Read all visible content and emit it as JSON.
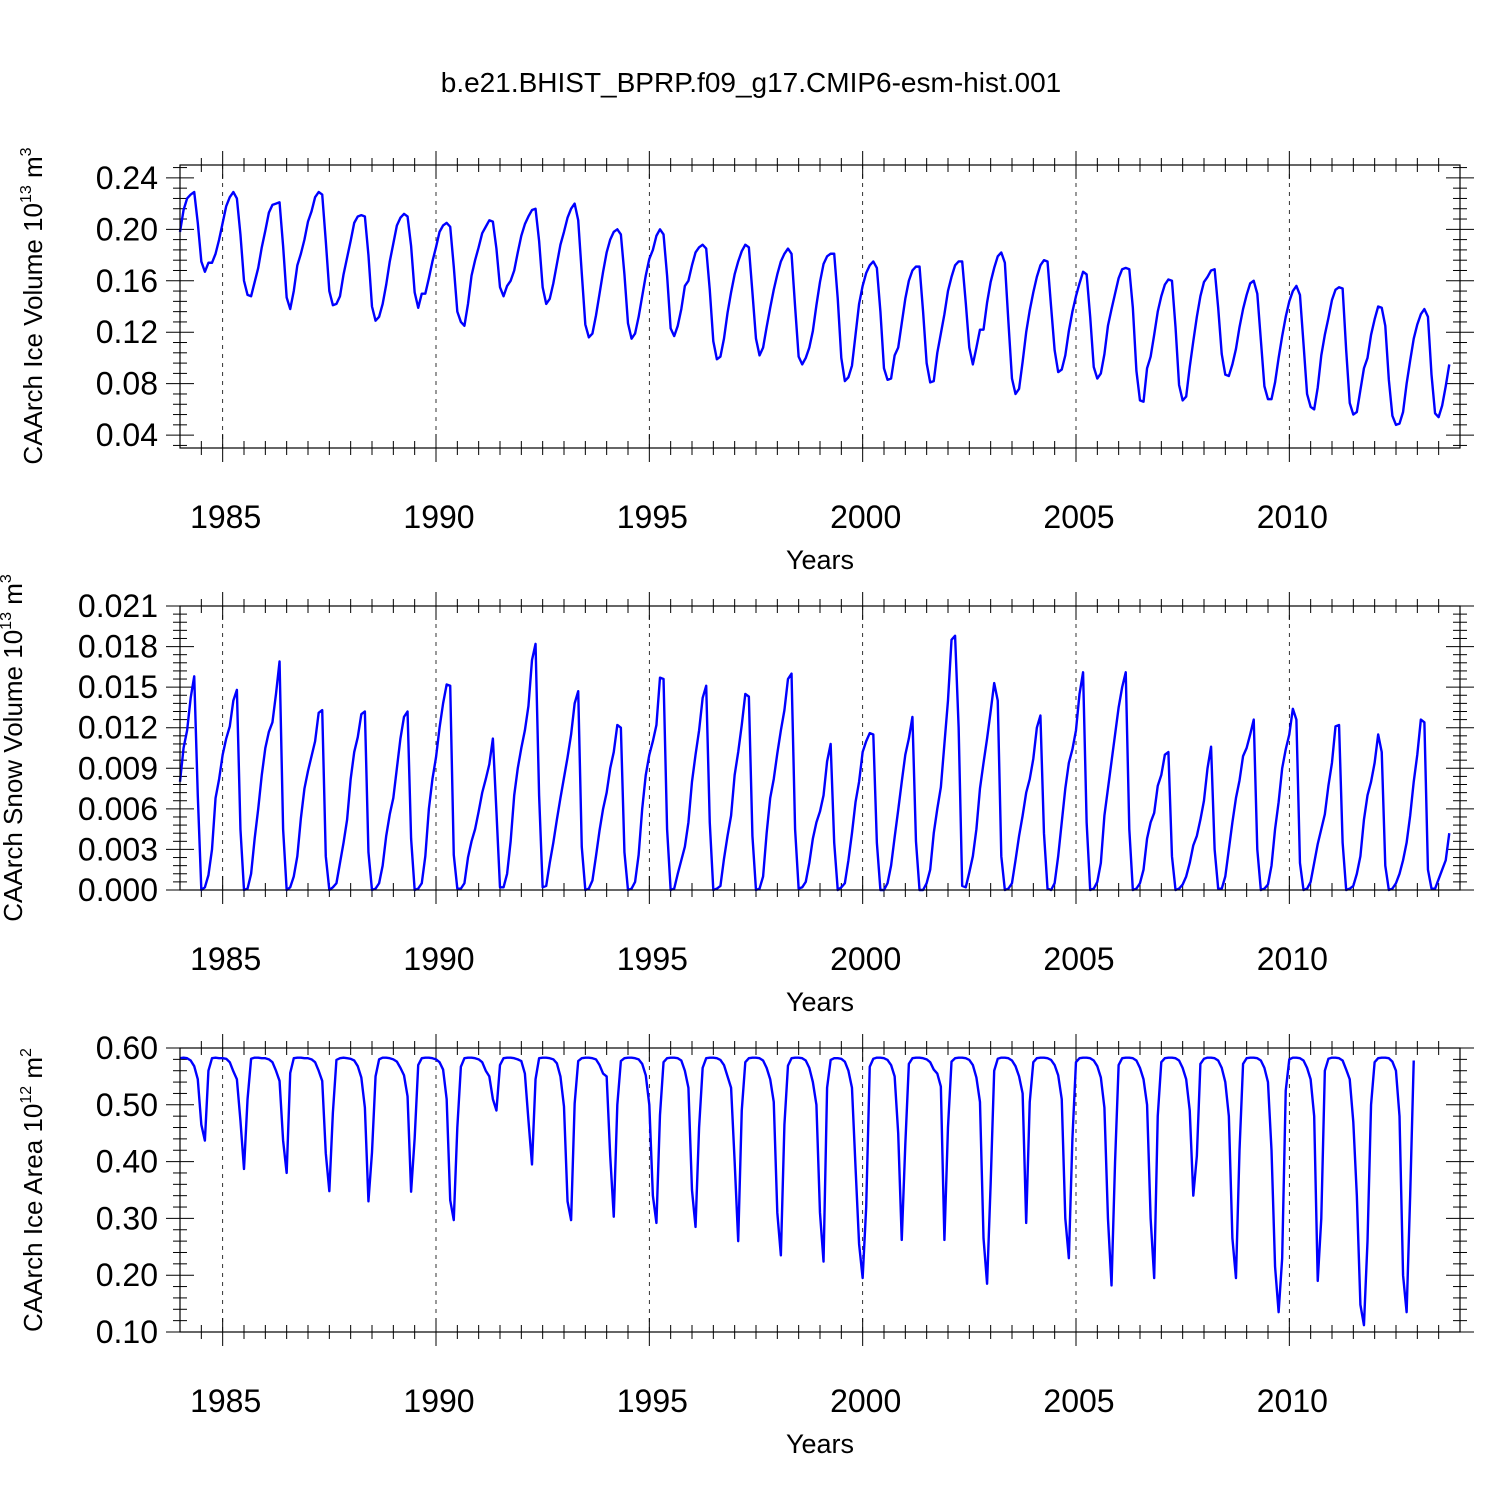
{
  "figure_title": "b.e21.BHIST_BPRP.f09_g17.CMIP6-esm-hist.001",
  "colors": {
    "series": "#0000ff",
    "axes": "#000000",
    "background": "#ffffff"
  },
  "chart_data": [
    {
      "type": "line",
      "title": "b.e21.BHIST_BPRP.f09_g17.CMIP6-esm-hist.001",
      "ylabel_main": "CAArch Ice Volume 10",
      "ylabel_exp": "13",
      "ylabel_unit": "m",
      "ylabel_unit_exp": "3",
      "xlabel": "Years",
      "xlim": [
        1984.0,
        2014.0
      ],
      "ylim": [
        0.03,
        0.25
      ],
      "yticks": [
        0.04,
        0.08,
        0.12,
        0.16,
        0.2,
        0.24
      ],
      "ytick_labels": [
        "0.04",
        "0.08",
        "0.12",
        "0.16",
        "0.20",
        "0.24"
      ],
      "xticks": [
        1985,
        1990,
        1995,
        2000,
        2005,
        2010
      ],
      "xtick_labels": [
        "1985",
        "1990",
        "1995",
        "2000",
        "2005",
        "2010"
      ],
      "grid": "dashed vertical lines at major x ticks",
      "start_year": 1984.0,
      "step": 0.08333,
      "values": [
        0.198,
        0.215,
        0.224,
        0.227,
        0.229,
        0.205,
        0.175,
        0.167,
        0.174,
        0.174,
        0.181,
        0.192,
        0.205,
        0.218,
        0.225,
        0.229,
        0.224,
        0.196,
        0.16,
        0.149,
        0.148,
        0.159,
        0.17,
        0.186,
        0.199,
        0.213,
        0.219,
        0.22,
        0.221,
        0.187,
        0.147,
        0.138,
        0.152,
        0.172,
        0.181,
        0.192,
        0.206,
        0.214,
        0.225,
        0.229,
        0.227,
        0.191,
        0.152,
        0.141,
        0.142,
        0.148,
        0.165,
        0.178,
        0.191,
        0.205,
        0.21,
        0.211,
        0.21,
        0.18,
        0.14,
        0.129,
        0.132,
        0.142,
        0.157,
        0.175,
        0.189,
        0.203,
        0.209,
        0.212,
        0.21,
        0.187,
        0.151,
        0.139,
        0.15,
        0.15,
        0.162,
        0.175,
        0.186,
        0.198,
        0.203,
        0.205,
        0.202,
        0.171,
        0.136,
        0.128,
        0.125,
        0.142,
        0.164,
        0.176,
        0.186,
        0.197,
        0.202,
        0.207,
        0.206,
        0.185,
        0.155,
        0.148,
        0.156,
        0.16,
        0.168,
        0.182,
        0.195,
        0.204,
        0.21,
        0.215,
        0.216,
        0.191,
        0.155,
        0.142,
        0.146,
        0.158,
        0.173,
        0.188,
        0.198,
        0.209,
        0.216,
        0.22,
        0.207,
        0.166,
        0.126,
        0.116,
        0.119,
        0.133,
        0.15,
        0.167,
        0.182,
        0.192,
        0.198,
        0.2,
        0.196,
        0.165,
        0.127,
        0.115,
        0.119,
        0.132,
        0.148,
        0.164,
        0.177,
        0.184,
        0.195,
        0.2,
        0.196,
        0.164,
        0.123,
        0.117,
        0.125,
        0.138,
        0.156,
        0.16,
        0.172,
        0.182,
        0.186,
        0.188,
        0.185,
        0.153,
        0.113,
        0.099,
        0.101,
        0.115,
        0.135,
        0.151,
        0.165,
        0.175,
        0.183,
        0.188,
        0.186,
        0.151,
        0.115,
        0.102,
        0.108,
        0.124,
        0.139,
        0.153,
        0.165,
        0.175,
        0.181,
        0.185,
        0.181,
        0.14,
        0.101,
        0.095,
        0.1,
        0.108,
        0.121,
        0.141,
        0.159,
        0.173,
        0.179,
        0.181,
        0.181,
        0.146,
        0.1,
        0.082,
        0.085,
        0.094,
        0.118,
        0.142,
        0.156,
        0.166,
        0.172,
        0.175,
        0.17,
        0.136,
        0.092,
        0.083,
        0.084,
        0.102,
        0.108,
        0.127,
        0.146,
        0.16,
        0.168,
        0.171,
        0.171,
        0.136,
        0.096,
        0.081,
        0.082,
        0.104,
        0.119,
        0.134,
        0.152,
        0.163,
        0.172,
        0.175,
        0.175,
        0.143,
        0.108,
        0.095,
        0.108,
        0.122,
        0.122,
        0.143,
        0.159,
        0.17,
        0.179,
        0.182,
        0.174,
        0.128,
        0.084,
        0.072,
        0.076,
        0.097,
        0.12,
        0.137,
        0.151,
        0.163,
        0.172,
        0.176,
        0.175,
        0.14,
        0.106,
        0.089,
        0.091,
        0.102,
        0.121,
        0.136,
        0.148,
        0.158,
        0.167,
        0.165,
        0.132,
        0.093,
        0.084,
        0.088,
        0.103,
        0.125,
        0.138,
        0.15,
        0.162,
        0.169,
        0.17,
        0.169,
        0.139,
        0.09,
        0.067,
        0.066,
        0.092,
        0.101,
        0.118,
        0.136,
        0.148,
        0.157,
        0.161,
        0.16,
        0.124,
        0.079,
        0.067,
        0.07,
        0.093,
        0.113,
        0.132,
        0.148,
        0.159,
        0.163,
        0.168,
        0.169,
        0.139,
        0.103,
        0.087,
        0.086,
        0.095,
        0.107,
        0.124,
        0.138,
        0.149,
        0.158,
        0.16,
        0.15,
        0.114,
        0.078,
        0.068,
        0.068,
        0.081,
        0.1,
        0.117,
        0.132,
        0.144,
        0.152,
        0.156,
        0.149,
        0.111,
        0.072,
        0.062,
        0.06,
        0.077,
        0.102,
        0.118,
        0.131,
        0.145,
        0.153,
        0.155,
        0.154,
        0.106,
        0.065,
        0.056,
        0.058,
        0.075,
        0.092,
        0.1,
        0.118,
        0.13,
        0.14,
        0.139,
        0.125,
        0.083,
        0.055,
        0.048,
        0.049,
        0.058,
        0.08,
        0.098,
        0.115,
        0.126,
        0.134,
        0.138,
        0.132,
        0.087,
        0.057,
        0.054,
        0.063,
        0.078,
        0.095
      ]
    },
    {
      "type": "line",
      "ylabel_main": "CAArch Snow Volume 10",
      "ylabel_exp": "13",
      "ylabel_unit": "m",
      "ylabel_unit_exp": "3",
      "xlabel": "Years",
      "xlim": [
        1984.0,
        2014.0
      ],
      "ylim": [
        0.0,
        0.021
      ],
      "yticks": [
        0.0,
        0.003,
        0.006,
        0.009,
        0.012,
        0.015,
        0.018,
        0.021
      ],
      "ytick_labels": [
        "0.000",
        "0.003",
        "0.006",
        "0.009",
        "0.012",
        "0.015",
        "0.018",
        "0.021"
      ],
      "xticks": [
        1985,
        1990,
        1995,
        2000,
        2005,
        2010
      ],
      "xtick_labels": [
        "1985",
        "1990",
        "1995",
        "2000",
        "2005",
        "2010"
      ],
      "grid": "dashed vertical lines at major x ticks",
      "start_year": 1984.0,
      "step": 0.08333,
      "values": [
        0.008,
        0.0105,
        0.0118,
        0.0142,
        0.0158,
        0.007,
        0.0,
        0.0002,
        0.0011,
        0.003,
        0.0068,
        0.0082,
        0.01,
        0.0112,
        0.0121,
        0.014,
        0.0148,
        0.0045,
        0.0,
        0.0001,
        0.0012,
        0.0038,
        0.006,
        0.0085,
        0.0105,
        0.0117,
        0.0124,
        0.0145,
        0.0169,
        0.0045,
        0.0,
        0.0002,
        0.001,
        0.0025,
        0.0053,
        0.0075,
        0.0088,
        0.0099,
        0.011,
        0.0131,
        0.0133,
        0.0025,
        0.0,
        0.0002,
        0.0005,
        0.002,
        0.0035,
        0.0052,
        0.0082,
        0.0102,
        0.0113,
        0.013,
        0.0132,
        0.0028,
        0.0,
        0.0001,
        0.0005,
        0.0018,
        0.004,
        0.0056,
        0.0068,
        0.009,
        0.0112,
        0.0128,
        0.0132,
        0.0038,
        0.0,
        0.0001,
        0.0005,
        0.0025,
        0.006,
        0.0082,
        0.0098,
        0.012,
        0.0138,
        0.0152,
        0.0151,
        0.0026,
        0.0001,
        0.0001,
        0.0005,
        0.0024,
        0.0036,
        0.0045,
        0.0058,
        0.0072,
        0.0082,
        0.0093,
        0.0112,
        0.0058,
        0.0002,
        0.0002,
        0.0012,
        0.0036,
        0.007,
        0.009,
        0.0105,
        0.0118,
        0.0136,
        0.017,
        0.0182,
        0.007,
        0.0002,
        0.0003,
        0.002,
        0.0035,
        0.0052,
        0.0068,
        0.0083,
        0.0098,
        0.0115,
        0.0138,
        0.0147,
        0.0032,
        0.0,
        0.0001,
        0.0007,
        0.0025,
        0.0044,
        0.006,
        0.0072,
        0.009,
        0.0102,
        0.0122,
        0.012,
        0.0028,
        0.0,
        0.0001,
        0.0006,
        0.0026,
        0.006,
        0.0085,
        0.01,
        0.011,
        0.0122,
        0.0157,
        0.0156,
        0.0045,
        0.0,
        0.0001,
        0.0012,
        0.0022,
        0.0032,
        0.005,
        0.008,
        0.01,
        0.0118,
        0.0142,
        0.0151,
        0.005,
        0.0,
        0.0001,
        0.0003,
        0.0023,
        0.004,
        0.0055,
        0.0085,
        0.0102,
        0.0122,
        0.0145,
        0.0143,
        0.004,
        0.0,
        0.0001,
        0.001,
        0.0042,
        0.0068,
        0.0082,
        0.0101,
        0.0118,
        0.0133,
        0.0156,
        0.016,
        0.0045,
        0.0001,
        0.0002,
        0.0006,
        0.002,
        0.0038,
        0.005,
        0.0058,
        0.007,
        0.0095,
        0.0108,
        0.0035,
        0.0,
        0.0002,
        0.0005,
        0.0022,
        0.0042,
        0.0065,
        0.008,
        0.0102,
        0.011,
        0.0116,
        0.0115,
        0.0035,
        0.0,
        0.0,
        0.0005,
        0.0018,
        0.0039,
        0.0059,
        0.008,
        0.01,
        0.0112,
        0.0128,
        0.0036,
        0.0,
        0.0,
        0.0005,
        0.0015,
        0.0042,
        0.006,
        0.0076,
        0.0108,
        0.014,
        0.0185,
        0.0188,
        0.012,
        0.0003,
        0.0002,
        0.0013,
        0.0025,
        0.0045,
        0.0075,
        0.0094,
        0.0112,
        0.0132,
        0.0153,
        0.014,
        0.0025,
        0.0,
        0.0001,
        0.0005,
        0.0022,
        0.004,
        0.0055,
        0.0072,
        0.0082,
        0.0097,
        0.012,
        0.0129,
        0.0042,
        0.0001,
        0.0,
        0.0005,
        0.0025,
        0.005,
        0.0075,
        0.0094,
        0.0104,
        0.0118,
        0.0145,
        0.0161,
        0.005,
        0.0,
        0.0001,
        0.0006,
        0.002,
        0.0055,
        0.0075,
        0.0095,
        0.0115,
        0.0135,
        0.015,
        0.0161,
        0.0045,
        0.0,
        0.0001,
        0.0005,
        0.0015,
        0.0038,
        0.005,
        0.0057,
        0.0077,
        0.0085,
        0.01,
        0.0102,
        0.0025,
        0.0,
        0.0001,
        0.0004,
        0.001,
        0.002,
        0.0033,
        0.004,
        0.0052,
        0.0066,
        0.009,
        0.0106,
        0.003,
        0.0001,
        0.0001,
        0.001,
        0.003,
        0.005,
        0.0068,
        0.0081,
        0.0099,
        0.0105,
        0.0115,
        0.0126,
        0.003,
        0.0,
        0.0001,
        0.0004,
        0.0018,
        0.0045,
        0.0065,
        0.009,
        0.0104,
        0.0115,
        0.0134,
        0.0126,
        0.002,
        0.0,
        0.0001,
        0.0006,
        0.002,
        0.0034,
        0.0045,
        0.0056,
        0.0077,
        0.0094,
        0.0121,
        0.0122,
        0.0035,
        0.0,
        0.0001,
        0.0003,
        0.0012,
        0.0025,
        0.0052,
        0.007,
        0.008,
        0.0094,
        0.0115,
        0.0102,
        0.0018,
        0.0,
        0.0001,
        0.0005,
        0.0012,
        0.0022,
        0.0035,
        0.0055,
        0.008,
        0.01,
        0.0126,
        0.0124,
        0.0015,
        0.0001,
        0.0001,
        0.0008,
        0.0015,
        0.0022,
        0.0042
      ]
    },
    {
      "type": "line",
      "ylabel_main": "CAArch Ice Area 10",
      "ylabel_exp": "12",
      "ylabel_unit": "m",
      "ylabel_unit_exp": "2",
      "xlabel": "Years",
      "xlim": [
        1984.0,
        2014.0
      ],
      "ylim": [
        0.1,
        0.6
      ],
      "yticks": [
        0.1,
        0.2,
        0.3,
        0.4,
        0.5,
        0.6
      ],
      "ytick_labels": [
        "0.10",
        "0.20",
        "0.30",
        "0.40",
        "0.50",
        "0.60"
      ],
      "xticks": [
        1985,
        1990,
        1995,
        2000,
        2005,
        2010
      ],
      "xtick_labels": [
        "1985",
        "1990",
        "1995",
        "2000",
        "2005",
        "2010"
      ],
      "grid": "dashed vertical lines at major x ticks",
      "start_year": 1984.0,
      "step": 0.08333,
      "values": [
        0.582,
        0.583,
        0.582,
        0.578,
        0.568,
        0.545,
        0.465,
        0.437,
        0.56,
        0.582,
        0.583,
        0.582,
        0.582,
        0.581,
        0.575,
        0.559,
        0.545,
        0.472,
        0.387,
        0.51,
        0.581,
        0.583,
        0.583,
        0.582,
        0.582,
        0.58,
        0.575,
        0.56,
        0.542,
        0.437,
        0.38,
        0.556,
        0.582,
        0.583,
        0.583,
        0.582,
        0.582,
        0.58,
        0.575,
        0.56,
        0.542,
        0.415,
        0.348,
        0.486,
        0.579,
        0.582,
        0.583,
        0.582,
        0.581,
        0.578,
        0.568,
        0.548,
        0.495,
        0.33,
        0.416,
        0.55,
        0.58,
        0.583,
        0.583,
        0.582,
        0.58,
        0.576,
        0.565,
        0.552,
        0.515,
        0.347,
        0.441,
        0.57,
        0.582,
        0.583,
        0.583,
        0.582,
        0.58,
        0.575,
        0.562,
        0.51,
        0.332,
        0.297,
        0.46,
        0.567,
        0.582,
        0.583,
        0.583,
        0.582,
        0.58,
        0.575,
        0.56,
        0.55,
        0.51,
        0.49,
        0.57,
        0.582,
        0.583,
        0.583,
        0.582,
        0.58,
        0.577,
        0.555,
        0.473,
        0.395,
        0.545,
        0.582,
        0.583,
        0.583,
        0.582,
        0.58,
        0.573,
        0.55,
        0.497,
        0.33,
        0.297,
        0.502,
        0.577,
        0.582,
        0.583,
        0.583,
        0.582,
        0.58,
        0.57,
        0.555,
        0.55,
        0.41,
        0.303,
        0.5,
        0.577,
        0.582,
        0.583,
        0.583,
        0.582,
        0.58,
        0.572,
        0.552,
        0.5,
        0.34,
        0.292,
        0.482,
        0.575,
        0.582,
        0.583,
        0.583,
        0.582,
        0.578,
        0.56,
        0.53,
        0.35,
        0.285,
        0.46,
        0.565,
        0.582,
        0.583,
        0.583,
        0.582,
        0.579,
        0.57,
        0.55,
        0.53,
        0.4,
        0.26,
        0.49,
        0.575,
        0.582,
        0.583,
        0.583,
        0.582,
        0.578,
        0.565,
        0.545,
        0.505,
        0.31,
        0.235,
        0.465,
        0.569,
        0.582,
        0.583,
        0.583,
        0.582,
        0.578,
        0.565,
        0.54,
        0.5,
        0.31,
        0.224,
        0.53,
        0.579,
        0.582,
        0.582,
        0.581,
        0.576,
        0.56,
        0.53,
        0.39,
        0.255,
        0.195,
        0.32,
        0.567,
        0.581,
        0.583,
        0.583,
        0.582,
        0.579,
        0.57,
        0.55,
        0.45,
        0.262,
        0.43,
        0.572,
        0.582,
        0.583,
        0.583,
        0.582,
        0.58,
        0.575,
        0.562,
        0.555,
        0.532,
        0.262,
        0.46,
        0.576,
        0.582,
        0.583,
        0.583,
        0.582,
        0.579,
        0.57,
        0.548,
        0.505,
        0.265,
        0.185,
        0.36,
        0.56,
        0.581,
        0.583,
        0.583,
        0.582,
        0.578,
        0.568,
        0.55,
        0.52,
        0.292,
        0.505,
        0.575,
        0.582,
        0.583,
        0.583,
        0.582,
        0.579,
        0.57,
        0.552,
        0.51,
        0.3,
        0.23,
        0.44,
        0.575,
        0.582,
        0.583,
        0.583,
        0.582,
        0.578,
        0.568,
        0.548,
        0.495,
        0.3,
        0.182,
        0.4,
        0.57,
        0.582,
        0.583,
        0.583,
        0.582,
        0.578,
        0.565,
        0.545,
        0.5,
        0.3,
        0.195,
        0.48,
        0.575,
        0.582,
        0.583,
        0.583,
        0.582,
        0.578,
        0.565,
        0.545,
        0.49,
        0.34,
        0.41,
        0.572,
        0.581,
        0.583,
        0.583,
        0.582,
        0.578,
        0.565,
        0.54,
        0.48,
        0.265,
        0.195,
        0.42,
        0.572,
        0.582,
        0.583,
        0.583,
        0.582,
        0.578,
        0.565,
        0.54,
        0.42,
        0.215,
        0.135,
        0.23,
        0.525,
        0.58,
        0.583,
        0.583,
        0.582,
        0.578,
        0.565,
        0.545,
        0.48,
        0.19,
        0.3,
        0.56,
        0.581,
        0.583,
        0.583,
        0.582,
        0.578,
        0.562,
        0.545,
        0.47,
        0.34,
        0.148,
        0.112,
        0.26,
        0.5,
        0.575,
        0.582,
        0.583,
        0.583,
        0.582,
        0.576,
        0.56,
        0.48,
        0.2,
        0.135,
        0.34,
        0.578
      ]
    }
  ]
}
